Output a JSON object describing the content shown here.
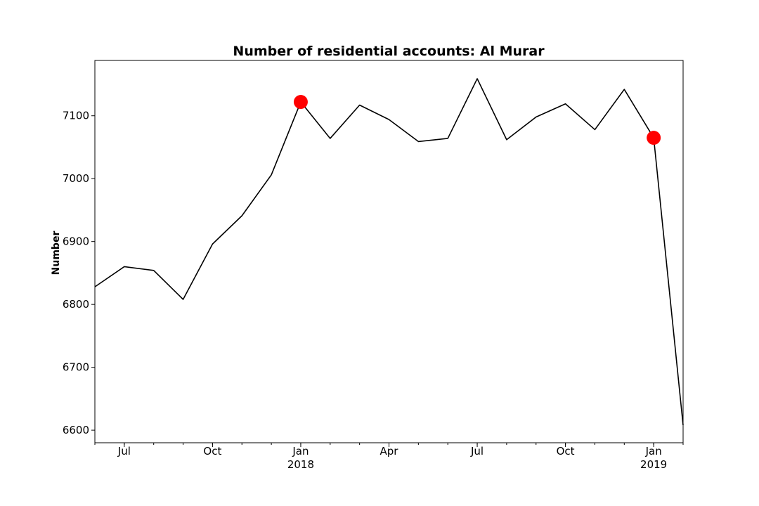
{
  "chart_data": {
    "type": "line",
    "title": "Number of residential accounts: Al Murar",
    "xlabel": "",
    "ylabel": "Number",
    "xlim": [
      "2017-06",
      "2019-02"
    ],
    "ylim": [
      6580,
      7188
    ],
    "grid": false,
    "y_ticks": [
      6600,
      6700,
      6800,
      6900,
      7000,
      7100
    ],
    "x_ticks": [
      {
        "date": "2017-07",
        "label": "Jul",
        "sublabel": ""
      },
      {
        "date": "2017-10",
        "label": "Oct",
        "sublabel": ""
      },
      {
        "date": "2018-01",
        "label": "Jan",
        "sublabel": "2018"
      },
      {
        "date": "2018-04",
        "label": "Apr",
        "sublabel": ""
      },
      {
        "date": "2018-07",
        "label": "Jul",
        "sublabel": ""
      },
      {
        "date": "2018-10",
        "label": "Oct",
        "sublabel": ""
      },
      {
        "date": "2019-01",
        "label": "Jan",
        "sublabel": "2019"
      }
    ],
    "series": [
      {
        "color": "#000000",
        "points": [
          {
            "x": "2017-06",
            "y": 6828
          },
          {
            "x": "2017-07",
            "y": 6860
          },
          {
            "x": "2017-08",
            "y": 6854
          },
          {
            "x": "2017-09",
            "y": 6808
          },
          {
            "x": "2017-10",
            "y": 6896
          },
          {
            "x": "2017-11",
            "y": 6941
          },
          {
            "x": "2017-12",
            "y": 7006
          },
          {
            "x": "2018-01",
            "y": 7122
          },
          {
            "x": "2018-02",
            "y": 7064
          },
          {
            "x": "2018-03",
            "y": 7117
          },
          {
            "x": "2018-04",
            "y": 7094
          },
          {
            "x": "2018-05",
            "y": 7059
          },
          {
            "x": "2018-06",
            "y": 7064
          },
          {
            "x": "2018-07",
            "y": 7159
          },
          {
            "x": "2018-08",
            "y": 7062
          },
          {
            "x": "2018-09",
            "y": 7098
          },
          {
            "x": "2018-10",
            "y": 7119
          },
          {
            "x": "2018-11",
            "y": 7078
          },
          {
            "x": "2018-12",
            "y": 7142
          },
          {
            "x": "2019-01",
            "y": 7065
          },
          {
            "x": "2019-02",
            "y": 6608
          }
        ]
      }
    ],
    "markers": {
      "color": "#ff0000",
      "points": [
        {
          "x": "2018-01",
          "y": 7122
        },
        {
          "x": "2019-01",
          "y": 7065
        }
      ]
    }
  }
}
